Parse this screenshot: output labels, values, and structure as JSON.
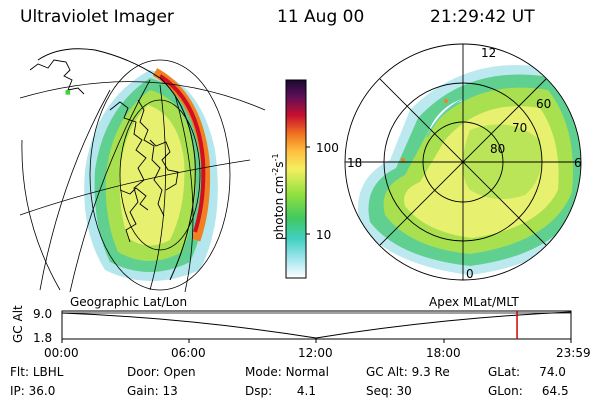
{
  "header": {
    "instrument": "Ultraviolet Imager",
    "date": "11 Aug 00",
    "time": "21:29:42 UT"
  },
  "colorbar": {
    "unit_label": "photon cm",
    "unit_sup1": "-2",
    "unit_mid": "s",
    "unit_sup2": "-1",
    "ticks": [
      "100",
      "10"
    ],
    "scale": "log",
    "colors": [
      "#1a0a2e",
      "#6a1060",
      "#c81030",
      "#f07020",
      "#ffc040",
      "#f4f060",
      "#90e040",
      "#40c860",
      "#40d0c0",
      "#a0e8f0",
      "#ffffff"
    ]
  },
  "left_panel": {
    "title": "Geographic Lat/Lon"
  },
  "right_panel": {
    "title": "Apex MLat/MLT",
    "mlt_labels": {
      "top": "12",
      "left": "18",
      "right": "6",
      "bottom": "0"
    },
    "mlat_labels": [
      "60",
      "70",
      "80"
    ]
  },
  "timeline": {
    "ylabel": "GC Alt",
    "ytick_top": "9.0",
    "ytick_bottom": "1.8",
    "xticks": [
      "00:00",
      "06:00",
      "12:00",
      "18:00",
      "23:59"
    ],
    "current_time_fraction": 0.894,
    "marker_color": "#d00000"
  },
  "status": {
    "flt_label": "Flt:",
    "flt_value": "LBHL",
    "door_label": "Door:",
    "door_value": "Open",
    "mode_label": "Mode:",
    "mode_value": "Normal",
    "gcalt_label": "GC Alt:",
    "gcalt_value": "9.3 Re",
    "glat_label": "GLat:",
    "glat_value": "74.0",
    "ip_label": "IP:",
    "ip_value": "36.0",
    "gain_label": "Gain:",
    "gain_value": "13",
    "dsp_label": "Dsp:",
    "dsp_value": "4.1",
    "seq_label": "Seq:",
    "seq_value": "30",
    "glon_label": "GLon:",
    "glon_value": "64.5"
  }
}
